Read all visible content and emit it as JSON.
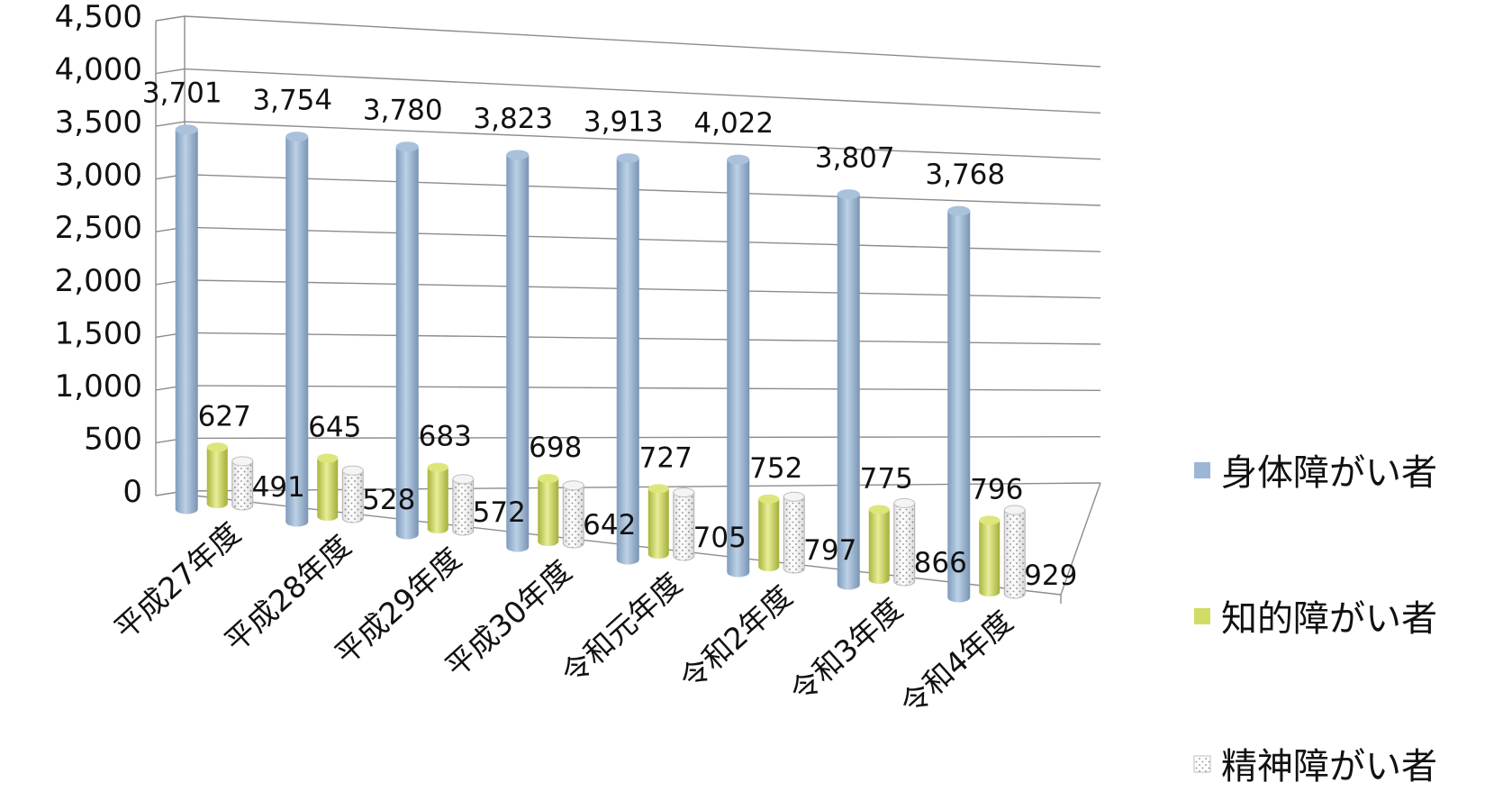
{
  "chart_data": {
    "type": "bar",
    "title": "",
    "xlabel": "",
    "ylabel": "",
    "ylim": [
      0,
      4500
    ],
    "yticks": [
      "4,500",
      "4,000",
      "3,500",
      "3,000",
      "2,500",
      "2,000",
      "1,500",
      "1,000",
      "500",
      "0"
    ],
    "categories": [
      "平成27年度",
      "平成28年度",
      "平成29年度",
      "平成30年度",
      "令和元年度",
      "令和2年度",
      "令和3年度",
      "令和4年度"
    ],
    "series": [
      {
        "name": "身体障がい者",
        "color": "#9bb7d4",
        "values": [
          3701,
          3754,
          3780,
          3823,
          3913,
          4022,
          3807,
          3768
        ],
        "labels": [
          "3,701",
          "3,754",
          "3,780",
          "3,823",
          "3,913",
          "4,022",
          "3,807",
          "3,768"
        ]
      },
      {
        "name": "知的障がい者",
        "color": "#d2dc64",
        "values": [
          627,
          645,
          683,
          698,
          727,
          752,
          775,
          796
        ],
        "labels": [
          "627",
          "645",
          "683",
          "698",
          "727",
          "752",
          "775",
          "796"
        ]
      },
      {
        "name": "精神障がい者",
        "color": "#ffffff",
        "values": [
          491,
          528,
          572,
          642,
          705,
          797,
          866,
          929
        ],
        "labels": [
          "491",
          "528",
          "572",
          "642",
          "705",
          "797",
          "866",
          "929"
        ]
      }
    ],
    "grid": true,
    "legend": "right",
    "style": "3d-cylinder"
  }
}
